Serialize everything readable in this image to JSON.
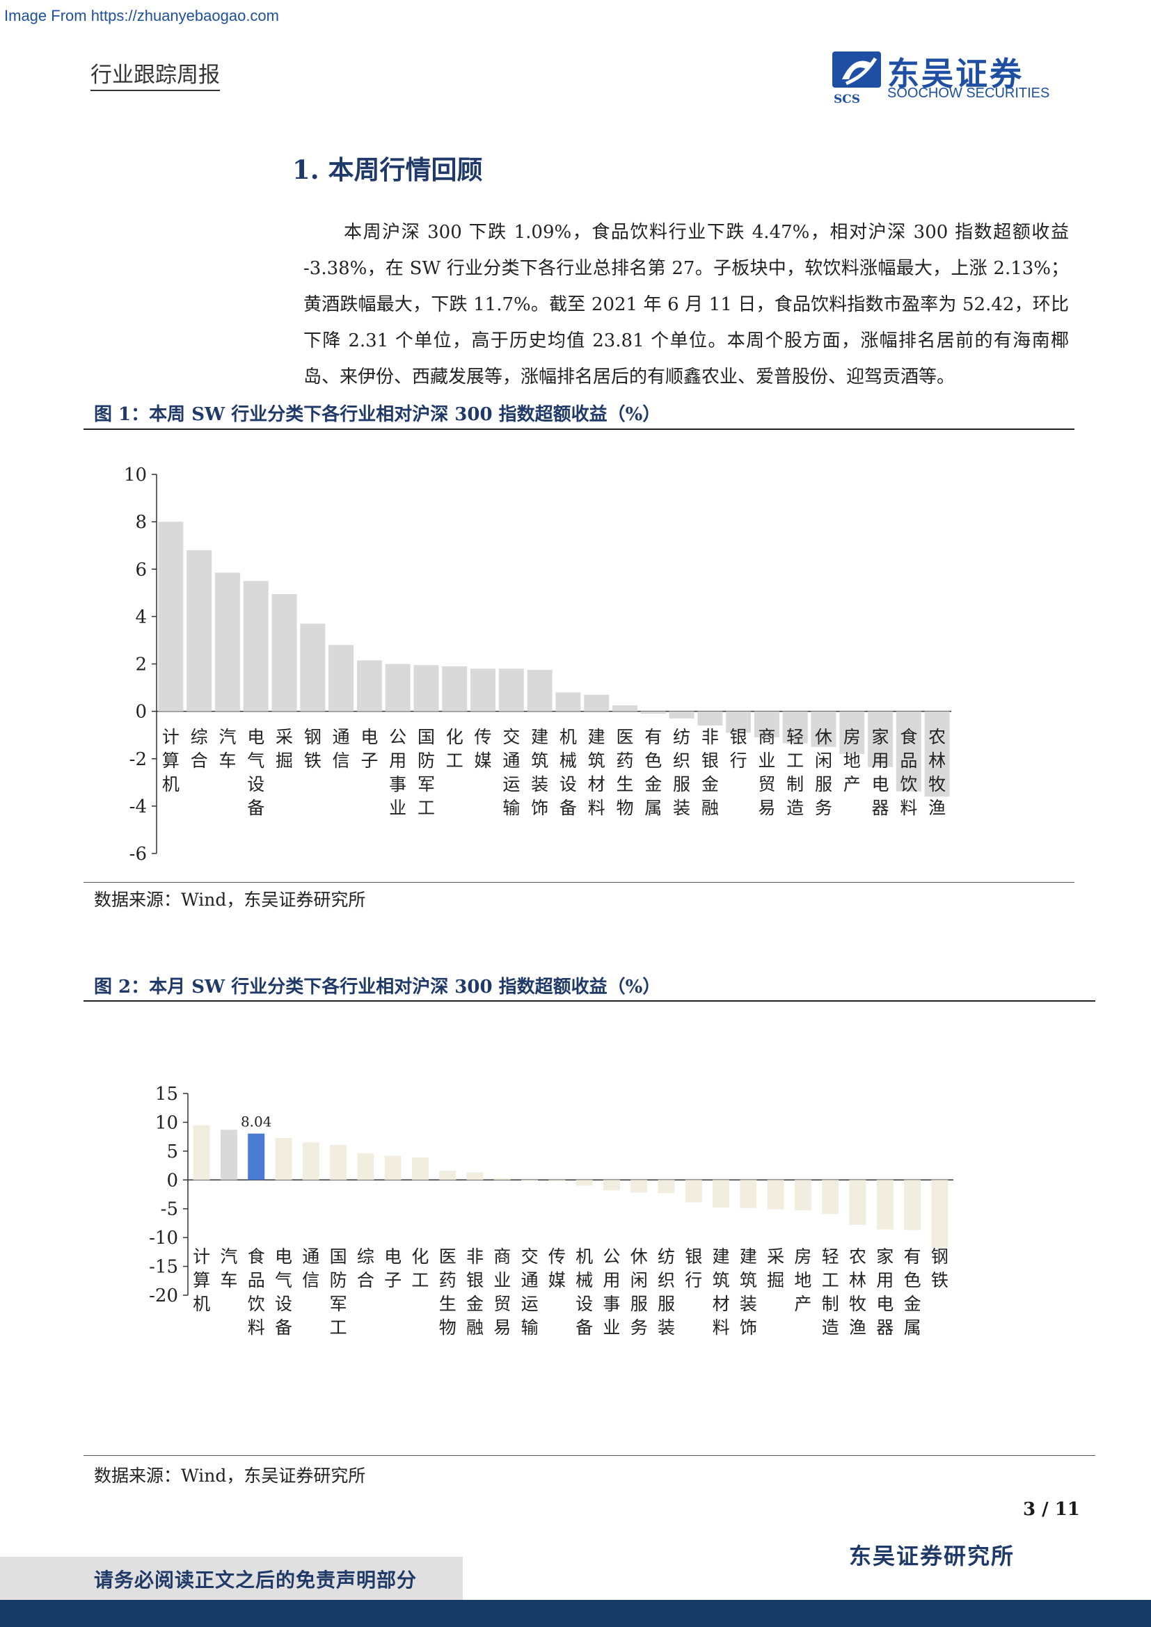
{
  "watermark": "Image From https://zhuanyebaogao.com",
  "header": {
    "report_type": "行业跟踪周报",
    "logo_cn": "东吴证券",
    "logo_en": "SOOCHOW SECURITIES",
    "logo_mark": "SCS"
  },
  "section": {
    "title": "1. 本周行情回顾",
    "paragraph": "本周沪深 300 下跌 1.09%，食品饮料行业下跌 4.47%，相对沪深 300 指数超额收益 -3.38%，在 SW 行业分类下各行业总排名第 27。子板块中，软饮料涨幅最大，上涨 2.13%；黄酒跌幅最大，下跌 11.7%。截至 2021 年 6 月 11 日，食品饮料指数市盈率为 52.42，环比下降 2.31 个单位，高于历史均值 23.81 个单位。本周个股方面，涨幅排名居前的有海南椰岛、来伊份、西藏发展等，涨幅排名居后的有顺鑫农业、爱普股份、迎驾贡酒等。"
  },
  "figures": [
    {
      "title": "图 1：本周 SW 行业分类下各行业相对沪深 300 指数超额收益（%）",
      "source": "数据来源：Wind，东吴证券研究所"
    },
    {
      "title": "图 2：本月 SW 行业分类下各行业相对沪深 300 指数超额收益（%）",
      "source": "数据来源：Wind，东吴证券研究所"
    }
  ],
  "chart_data": [
    {
      "type": "bar",
      "title": "",
      "xlabel": "",
      "ylabel": "",
      "ylim": [
        -6,
        10
      ],
      "yticks": [
        "10",
        "8",
        "6",
        "4",
        "2",
        "0",
        "-2",
        "-4",
        "-6"
      ],
      "grid": false,
      "categories": [
        "计算机",
        "综合",
        "汽车",
        "电气设备",
        "采掘",
        "钢铁",
        "通信",
        "电子",
        "公用事业",
        "国防军工",
        "化工",
        "传媒",
        "交通运输",
        "建筑装饰",
        "机械设备",
        "建筑材料",
        "医药生物",
        "有色金属",
        "纺织服装",
        "非银金融",
        "银行",
        "商业贸易",
        "轻工制造",
        "休闲服务",
        "房地产",
        "家用电器",
        "食品饮料",
        "农林牧渔"
      ],
      "values": [
        8.0,
        6.8,
        5.85,
        5.5,
        4.95,
        3.7,
        2.8,
        2.15,
        2.0,
        1.95,
        1.9,
        1.8,
        1.8,
        1.75,
        0.8,
        0.7,
        0.25,
        -0.1,
        -0.3,
        -0.6,
        -0.9,
        -1.1,
        -1.35,
        -1.5,
        -1.8,
        -2.35,
        -3.38,
        -3.6
      ],
      "colors": {
        "bar": "#d9d9d9"
      }
    },
    {
      "type": "bar",
      "title": "",
      "xlabel": "",
      "ylabel": "",
      "ylim": [
        -20,
        15
      ],
      "yticks": [
        "15",
        "10",
        "5",
        "0",
        "-5",
        "-10",
        "-15",
        "-20"
      ],
      "grid": false,
      "categories": [
        "计算机",
        "汽车",
        "食品饮料",
        "电气设备",
        "通信",
        "国防军工",
        "综合",
        "电子",
        "化工",
        "医药生物",
        "非银金融",
        "商业贸易",
        "交通运输",
        "传媒",
        "机械设备",
        "公用事业",
        "休闲服务",
        "纺织服装",
        "银行",
        "建筑材料",
        "建筑装饰",
        "采掘",
        "房地产",
        "轻工制造",
        "农林牧渔",
        "家用电器",
        "有色金属",
        "钢铁"
      ],
      "values": [
        9.5,
        8.7,
        8.04,
        7.3,
        6.5,
        6.1,
        4.6,
        4.2,
        3.9,
        1.6,
        1.3,
        0.3,
        -0.1,
        -0.2,
        -1.0,
        -1.8,
        -2.2,
        -2.3,
        -3.9,
        -4.8,
        -4.9,
        -5.1,
        -5.3,
        -5.9,
        -7.8,
        -8.6,
        -8.7,
        -11.8
      ],
      "highlight_index": 2,
      "data_labels": [
        {
          "index": 2,
          "text": "8.04"
        }
      ],
      "colors": {
        "bar": "#f1eee0",
        "bar_alt": "#d9d9d9",
        "highlight": "#4a7dd1"
      }
    }
  ],
  "footer": {
    "page": "3 / 11",
    "org": "东吴证券研究所",
    "disclaimer": "请务必阅读正文之后的免责声明部分"
  }
}
